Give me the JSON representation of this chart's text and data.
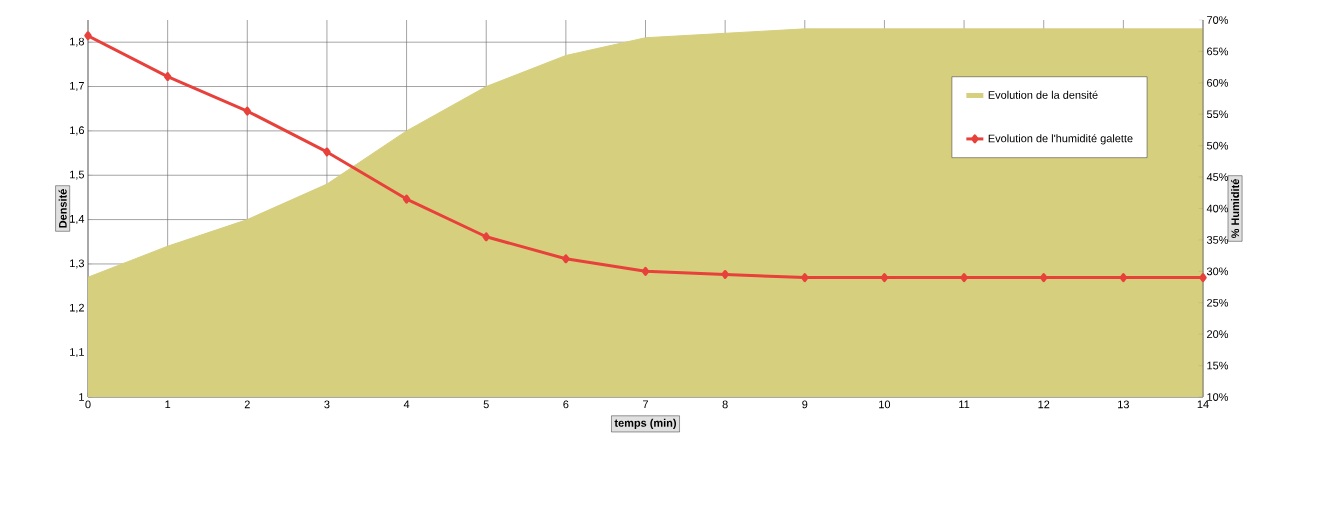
{
  "chart_data": {
    "type": "line",
    "xlabel": "temps (min)",
    "ylabel": "Densité",
    "y2label": "% Humidité",
    "x": [
      0,
      1,
      2,
      3,
      4,
      5,
      6,
      7,
      8,
      9,
      10,
      11,
      12,
      13,
      14
    ],
    "series": [
      {
        "name": "Evolution de la densité",
        "type": "area",
        "axis": "y",
        "color": "#d6cf7e",
        "values": [
          1.27,
          1.34,
          1.4,
          1.48,
          1.6,
          1.7,
          1.77,
          1.81,
          1.82,
          1.83,
          1.83,
          1.83,
          1.83,
          1.83,
          1.83
        ]
      },
      {
        "name": "Evolution de l'humidité galette",
        "axis": "y2",
        "color": "#e8403a",
        "marker": "diamond",
        "values": [
          67.5,
          61,
          55.5,
          49,
          41.5,
          35.5,
          32,
          30,
          29.5,
          29,
          29,
          29,
          29,
          29,
          29
        ]
      }
    ],
    "xlim": [
      0,
      14
    ],
    "xticks": [
      0,
      1,
      2,
      3,
      4,
      5,
      6,
      7,
      8,
      9,
      10,
      11,
      12,
      13,
      14
    ],
    "ylim": [
      1,
      1.85
    ],
    "yticks": [
      {
        "value": 1,
        "label": "1"
      },
      {
        "value": 1.1,
        "label": "1,1"
      },
      {
        "value": 1.2,
        "label": "1,2"
      },
      {
        "value": 1.3,
        "label": "1,3"
      },
      {
        "value": 1.4,
        "label": "1,4"
      },
      {
        "value": 1.5,
        "label": "1,5"
      },
      {
        "value": 1.6,
        "label": "1,6"
      },
      {
        "value": 1.7,
        "label": "1,7"
      },
      {
        "value": 1.8,
        "label": "1,8"
      }
    ],
    "y2lim": [
      10,
      70
    ],
    "y2ticks": [
      {
        "value": 10,
        "label": "10%"
      },
      {
        "value": 15,
        "label": "15%"
      },
      {
        "value": 20,
        "label": "20%"
      },
      {
        "value": 25,
        "label": "25%"
      },
      {
        "value": 30,
        "label": "30%"
      },
      {
        "value": 35,
        "label": "35%"
      },
      {
        "value": 40,
        "label": "40%"
      },
      {
        "value": 45,
        "label": "45%"
      },
      {
        "value": 50,
        "label": "50%"
      },
      {
        "value": 55,
        "label": "55%"
      },
      {
        "value": 60,
        "label": "60%"
      },
      {
        "value": 65,
        "label": "65%"
      },
      {
        "value": 70,
        "label": "70%"
      }
    ],
    "grid": true,
    "legend": "top right"
  }
}
